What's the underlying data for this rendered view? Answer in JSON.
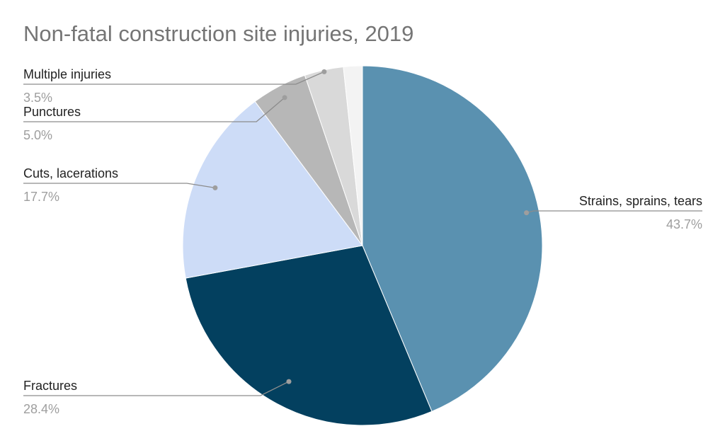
{
  "chart_data": {
    "type": "pie",
    "title": "Non-fatal construction site injuries, 2019",
    "slices": [
      {
        "label": "Strains, sprains, tears",
        "value": 43.7,
        "pct_label": "43.7%",
        "color": "#5a91b0",
        "labeled": true
      },
      {
        "label": "Fractures",
        "value": 28.4,
        "pct_label": "28.4%",
        "color": "#03405f",
        "labeled": true
      },
      {
        "label": "Cuts, lacerations",
        "value": 17.7,
        "pct_label": "17.7%",
        "color": "#cddcf7",
        "labeled": true
      },
      {
        "label": "Punctures",
        "value": 5.0,
        "pct_label": "5.0%",
        "color": "#b7b7b7",
        "labeled": true
      },
      {
        "label": "Multiple injuries",
        "value": 3.5,
        "pct_label": "3.5%",
        "color": "#d9d9d9",
        "labeled": true
      },
      {
        "label": "",
        "value": 1.7,
        "pct_label": "",
        "color": "#f3f3f3",
        "labeled": false
      }
    ],
    "start_angle_deg": 0,
    "direction": "clockwise",
    "legend": "callout-labels"
  }
}
